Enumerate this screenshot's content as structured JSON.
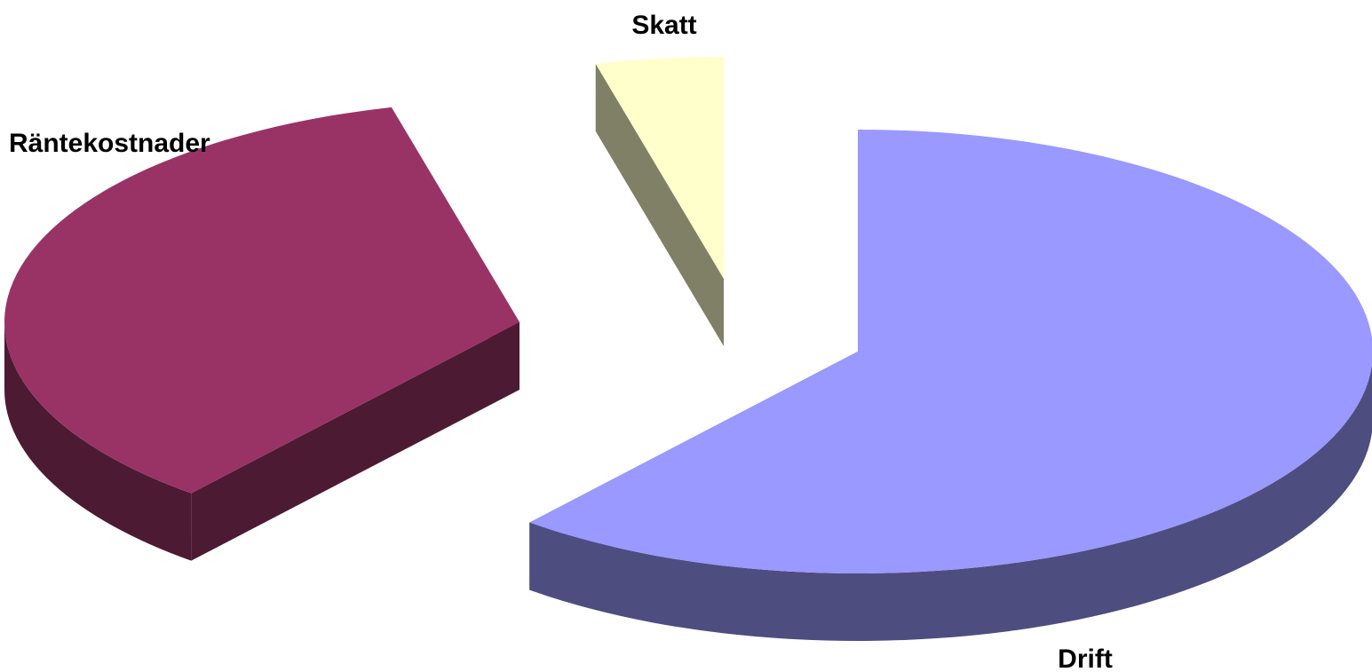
{
  "chart_data": {
    "type": "pie",
    "style": "3d-exploded",
    "title": "",
    "slices": [
      {
        "label": "Drift",
        "value": 61,
        "color": "#9999ff",
        "side_color": "#4d4d80"
      },
      {
        "label": "Räntekostnader",
        "value": 35,
        "color": "#993366",
        "side_color": "#4d1a33"
      },
      {
        "label": "Skatt",
        "value": 4,
        "color": "#ffffcc",
        "side_color": "#808066"
      }
    ]
  }
}
